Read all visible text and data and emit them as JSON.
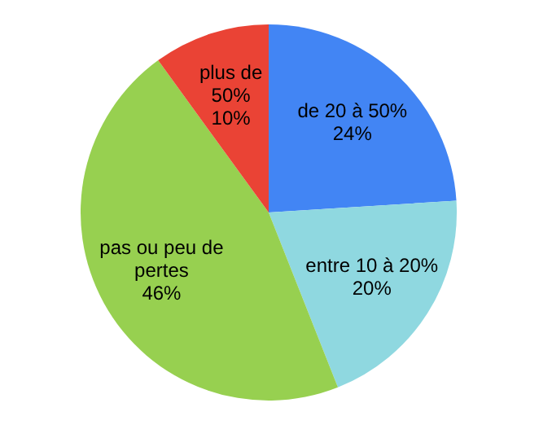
{
  "chart_data": {
    "type": "pie",
    "categories": [
      "de 20 à 50%",
      "entre 10 à 20%",
      "pas ou peu de pertes",
      "plus de 50%"
    ],
    "values": [
      24,
      20,
      46,
      10
    ],
    "value_labels": [
      "24%",
      "20%",
      "46%",
      "10%"
    ],
    "colors": [
      "#4285f4",
      "#8fd8e0",
      "#97d050",
      "#ea4335"
    ],
    "legend": false
  }
}
